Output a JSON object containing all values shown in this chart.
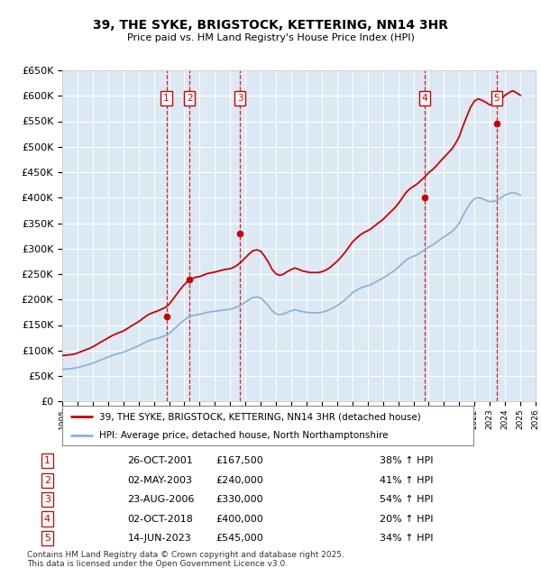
{
  "title": "39, THE SYKE, BRIGSTOCK, KETTERING, NN14 3HR",
  "subtitle": "Price paid vs. HM Land Registry's House Price Index (HPI)",
  "bg_color": "#dce9f5",
  "grid_color": "#ffffff",
  "hpi_color": "#8ab4d8",
  "sale_color": "#cc0000",
  "ylim": [
    0,
    650000
  ],
  "xlim_start": 1995,
  "xlim_end": 2026,
  "sale_dates": [
    2001.82,
    2003.34,
    2006.64,
    2018.75,
    2023.45
  ],
  "sale_prices": [
    167500,
    240000,
    330000,
    400000,
    545000
  ],
  "sale_labels": [
    "1",
    "2",
    "3",
    "4",
    "5"
  ],
  "sale_table": [
    {
      "num": "1",
      "date": "26-OCT-2001",
      "price": "£167,500",
      "pct": "38% ↑ HPI"
    },
    {
      "num": "2",
      "date": "02-MAY-2003",
      "price": "£240,000",
      "pct": "41% ↑ HPI"
    },
    {
      "num": "3",
      "date": "23-AUG-2006",
      "price": "£330,000",
      "pct": "54% ↑ HPI"
    },
    {
      "num": "4",
      "date": "02-OCT-2018",
      "price": "£400,000",
      "pct": "20% ↑ HPI"
    },
    {
      "num": "5",
      "date": "14-JUN-2023",
      "price": "£545,000",
      "pct": "34% ↑ HPI"
    }
  ],
  "legend_line1": "39, THE SYKE, BRIGSTOCK, KETTERING, NN14 3HR (detached house)",
  "legend_line2": "HPI: Average price, detached house, North Northamptonshire",
  "footer": "Contains HM Land Registry data © Crown copyright and database right 2025.\nThis data is licensed under the Open Government Licence v3.0.",
  "hpi_x": [
    1995.0,
    1995.25,
    1995.5,
    1995.75,
    1996.0,
    1996.25,
    1996.5,
    1996.75,
    1997.0,
    1997.25,
    1997.5,
    1997.75,
    1998.0,
    1998.25,
    1998.5,
    1998.75,
    1999.0,
    1999.25,
    1999.5,
    1999.75,
    2000.0,
    2000.25,
    2000.5,
    2000.75,
    2001.0,
    2001.25,
    2001.5,
    2001.75,
    2002.0,
    2002.25,
    2002.5,
    2002.75,
    2003.0,
    2003.25,
    2003.5,
    2003.75,
    2004.0,
    2004.25,
    2004.5,
    2004.75,
    2005.0,
    2005.25,
    2005.5,
    2005.75,
    2006.0,
    2006.25,
    2006.5,
    2006.75,
    2007.0,
    2007.25,
    2007.5,
    2007.75,
    2008.0,
    2008.25,
    2008.5,
    2008.75,
    2009.0,
    2009.25,
    2009.5,
    2009.75,
    2010.0,
    2010.25,
    2010.5,
    2010.75,
    2011.0,
    2011.25,
    2011.5,
    2011.75,
    2012.0,
    2012.25,
    2012.5,
    2012.75,
    2013.0,
    2013.25,
    2013.5,
    2013.75,
    2014.0,
    2014.25,
    2014.5,
    2014.75,
    2015.0,
    2015.25,
    2015.5,
    2015.75,
    2016.0,
    2016.25,
    2016.5,
    2016.75,
    2017.0,
    2017.25,
    2017.5,
    2017.75,
    2018.0,
    2018.25,
    2018.5,
    2018.75,
    2019.0,
    2019.25,
    2019.5,
    2019.75,
    2020.0,
    2020.25,
    2020.5,
    2020.75,
    2021.0,
    2021.25,
    2021.5,
    2021.75,
    2022.0,
    2022.25,
    2022.5,
    2022.75,
    2023.0,
    2023.25,
    2023.5,
    2023.75,
    2024.0,
    2024.25,
    2024.5,
    2024.75,
    2025.0
  ],
  "hpi_y": [
    63000,
    63500,
    64200,
    65000,
    66500,
    68500,
    70500,
    72500,
    75000,
    78000,
    81000,
    84000,
    87000,
    90000,
    92500,
    94500,
    96500,
    99500,
    103000,
    106000,
    109000,
    113000,
    117000,
    120000,
    122000,
    124000,
    126500,
    129000,
    133000,
    140000,
    147000,
    154000,
    160000,
    165000,
    168000,
    170000,
    171000,
    173000,
    175000,
    176000,
    177000,
    178000,
    179000,
    180000,
    181000,
    183000,
    186000,
    190000,
    195000,
    200000,
    204000,
    205000,
    203000,
    196000,
    188000,
    178000,
    172000,
    170000,
    172000,
    175000,
    178000,
    180000,
    178000,
    176000,
    175000,
    174000,
    174000,
    174000,
    175000,
    177000,
    180000,
    184000,
    188000,
    193000,
    199000,
    206000,
    213000,
    218000,
    222000,
    225000,
    227000,
    230000,
    234000,
    238000,
    242000,
    247000,
    252000,
    257000,
    263000,
    270000,
    277000,
    282000,
    285000,
    288000,
    293000,
    298000,
    303000,
    307000,
    312000,
    318000,
    323000,
    328000,
    333000,
    340000,
    350000,
    365000,
    378000,
    390000,
    398000,
    400000,
    398000,
    395000,
    392000,
    393000,
    396000,
    400000,
    405000,
    408000,
    410000,
    408000,
    405000
  ],
  "sold_hpi_y": [
    90000,
    90700,
    91600,
    92500,
    95000,
    97900,
    100800,
    103700,
    107100,
    111500,
    116000,
    120300,
    124500,
    128800,
    132300,
    135300,
    138300,
    142700,
    147600,
    152100,
    156500,
    162000,
    167700,
    172000,
    174900,
    177500,
    181000,
    184500,
    190500,
    200500,
    210500,
    220500,
    229500,
    236800,
    241000,
    244000,
    245000,
    248000,
    251000,
    252500,
    254000,
    256000,
    258000,
    259500,
    260500,
    263500,
    268400,
    274600,
    282200,
    289800,
    296000,
    297600,
    295000,
    285000,
    273500,
    259000,
    250500,
    247500,
    250000,
    255000,
    259000,
    262000,
    259000,
    256000,
    254500,
    253000,
    253000,
    253000,
    254500,
    257500,
    262000,
    268500,
    275000,
    283000,
    292000,
    302000,
    312500,
    320000,
    326500,
    331500,
    335000,
    339500,
    345500,
    351500,
    357000,
    364500,
    372000,
    379000,
    388000,
    398500,
    409500,
    417000,
    422000,
    427000,
    434000,
    441000,
    449000,
    455000,
    462500,
    471000,
    479000,
    487000,
    495000,
    506000,
    520000,
    541000,
    560000,
    578000,
    590000,
    594000,
    591000,
    587000,
    582000,
    583000,
    588000,
    594000,
    601000,
    606000,
    610000,
    606000,
    601000
  ]
}
